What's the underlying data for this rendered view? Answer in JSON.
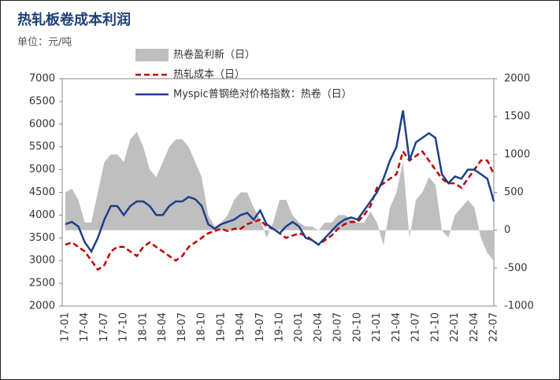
{
  "chart_data": {
    "type": "line",
    "title": "热轧板卷成本利润",
    "subtitle": "单位：元/吨",
    "categories": [
      "17-01",
      null,
      null,
      "17-04",
      null,
      null,
      "17-07",
      null,
      null,
      "17-10",
      null,
      null,
      "18-01",
      null,
      null,
      "18-04",
      null,
      null,
      "18-07",
      null,
      null,
      "18-10",
      null,
      null,
      "19-01",
      null,
      null,
      "19-04",
      null,
      null,
      "19-07",
      null,
      null,
      "19-10",
      null,
      null,
      "20-01",
      null,
      null,
      "20-04",
      null,
      null,
      "20-07",
      null,
      null,
      "20-10",
      null,
      null,
      "21-01",
      null,
      null,
      "21-04",
      null,
      null,
      "21-07",
      null,
      null,
      "21-10",
      null,
      null,
      "22-01",
      null,
      null,
      "22-04",
      null,
      null,
      "22-07"
    ],
    "ylim": [
      2000,
      7000
    ],
    "yticks": [
      2000,
      2500,
      3000,
      3500,
      4000,
      4500,
      5000,
      5500,
      6000,
      6500,
      7000
    ],
    "y2lim": [
      -1000,
      2000
    ],
    "y2ticks": [
      -1000,
      -500,
      0,
      500,
      1000,
      1500,
      2000
    ],
    "series": [
      {
        "name": "热卷盈利新（日）",
        "type": "area",
        "axis": "y2",
        "color": "#bfbfbf",
        "values": [
          500,
          550,
          400,
          100,
          100,
          500,
          900,
          1000,
          1000,
          900,
          1200,
          1300,
          1100,
          800,
          700,
          900,
          1100,
          1200,
          1200,
          1100,
          900,
          700,
          200,
          50,
          100,
          200,
          400,
          500,
          500,
          300,
          150,
          -100,
          100,
          400,
          400,
          200,
          100,
          50,
          50,
          0,
          100,
          100,
          200,
          200,
          150,
          100,
          100,
          250,
          100,
          -200,
          300,
          500,
          900,
          -100,
          400,
          500,
          700,
          600,
          0,
          -100,
          200,
          300,
          400,
          300,
          -100,
          -300,
          -400
        ]
      },
      {
        "name": "热轧成本（日）",
        "type": "line",
        "dash": true,
        "color": "#c00000",
        "values": [
          3350,
          3400,
          3300,
          3200,
          3000,
          2800,
          2900,
          3200,
          3300,
          3300,
          3200,
          3100,
          3300,
          3400,
          3300,
          3200,
          3100,
          3000,
          3100,
          3300,
          3400,
          3500,
          3600,
          3650,
          3700,
          3650,
          3700,
          3700,
          3800,
          3850,
          3900,
          3750,
          3700,
          3600,
          3500,
          3550,
          3600,
          3550,
          3450,
          3350,
          3450,
          3550,
          3700,
          3800,
          3850,
          3850,
          4000,
          4200,
          4600,
          4700,
          4800,
          4900,
          5400,
          5200,
          5300,
          5400,
          5200,
          5000,
          4800,
          4700,
          4700,
          4600,
          4800,
          5000,
          5200,
          5200,
          4900
        ]
      },
      {
        "name": "Myspic普钢绝对价格指数：热卷（日）",
        "type": "line",
        "dash": false,
        "color": "#1f3f8a",
        "values": [
          3800,
          3850,
          3750,
          3400,
          3200,
          3500,
          3900,
          4200,
          4200,
          4000,
          4200,
          4300,
          4300,
          4200,
          4000,
          4000,
          4200,
          4300,
          4300,
          4400,
          4350,
          4200,
          3800,
          3700,
          3800,
          3850,
          3900,
          4000,
          4050,
          3900,
          4100,
          3800,
          3700,
          3600,
          3750,
          3850,
          3750,
          3500,
          3450,
          3350,
          3500,
          3650,
          3800,
          3900,
          3950,
          3900,
          4100,
          4300,
          4500,
          4800,
          5200,
          5500,
          6300,
          5200,
          5600,
          5700,
          5800,
          5700,
          4900,
          4700,
          4850,
          4800,
          5000,
          5000,
          4900,
          4800,
          4300
        ]
      }
    ]
  }
}
